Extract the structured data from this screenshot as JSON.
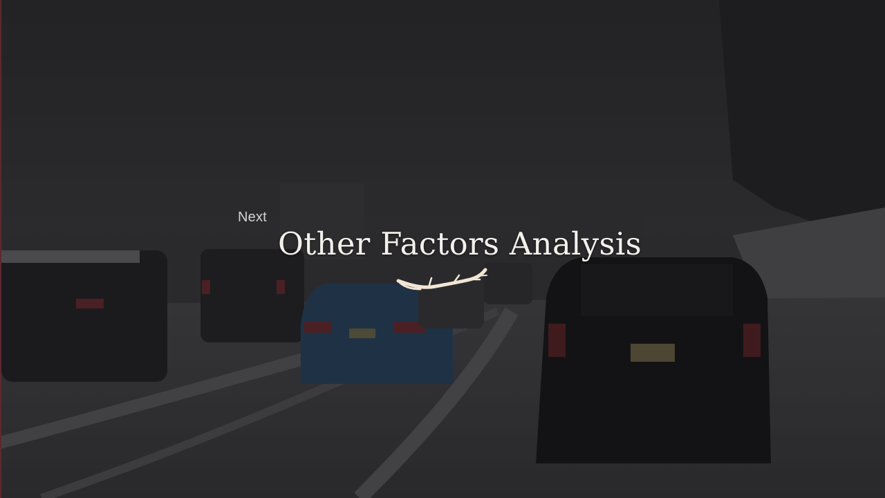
{
  "slide": {
    "eyebrow": "Next",
    "title": "Other Factors Analysis"
  },
  "background": {
    "subject": "snowy-highway-traffic-photo"
  },
  "colors": {
    "title": "#f4f1ec",
    "eyebrow": "#d4d4d4",
    "branch": "#f2e6d4",
    "overlay": "#1a1a1c"
  },
  "icons": {
    "divider": "branch-icon"
  }
}
